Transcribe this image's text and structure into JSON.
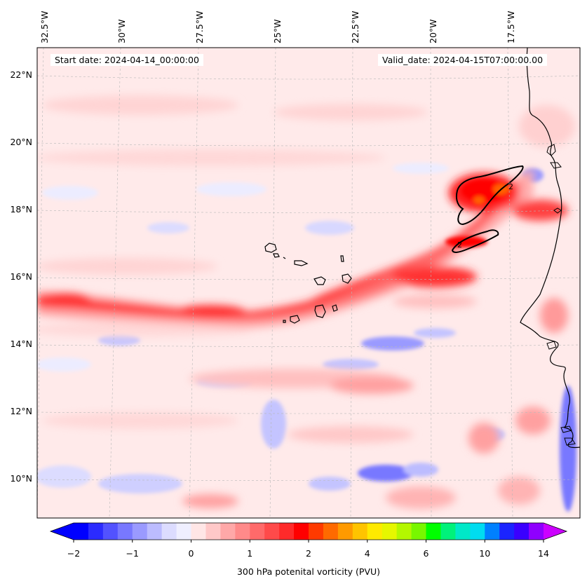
{
  "map": {
    "start_date": "Start date: 2024-04-14_00:00:00",
    "valid_date": "Valid_date: 2024-04-15T07:00:00.00",
    "longitude_labels": [
      "32.5°W",
      "30°W",
      "27.5°W",
      "25°W",
      "22.5°W",
      "20°W",
      "17.5°W"
    ],
    "latitude_labels": [
      "22°N",
      "20°N",
      "18°N",
      "16°N",
      "14°N",
      "12°N",
      "10°N"
    ],
    "contour_label": "2",
    "colorbar": {
      "label": "300 hPa potenital vorticity (PVU)",
      "ticks": [
        "−2",
        "−1",
        "0",
        "1",
        "2",
        "4",
        "6",
        "10",
        "14"
      ],
      "colors": [
        "#0000ff",
        "#2b2bff",
        "#5252ff",
        "#7878ff",
        "#9a9aff",
        "#bcbcff",
        "#dcdcff",
        "#efefff",
        "#ffe6e6",
        "#ffc8c8",
        "#ffa8a8",
        "#ff8a8a",
        "#ff6a6a",
        "#ff4a4a",
        "#ff2a2a",
        "#ff0000",
        "#ff3a00",
        "#ff6a00",
        "#ff9a00",
        "#ffc400",
        "#ffea00",
        "#e6f700",
        "#b4f700",
        "#78f700",
        "#00ff00",
        "#00f27a",
        "#00e8c8",
        "#00dcf0",
        "#0080ff",
        "#1a24ff",
        "#3a00ff",
        "#8f00ff"
      ],
      "extend_low_color": "#0000ff",
      "extend_high_color": "#cc00ff"
    },
    "coastline_color": "#000000",
    "background_color": "#ffe9e9"
  }
}
